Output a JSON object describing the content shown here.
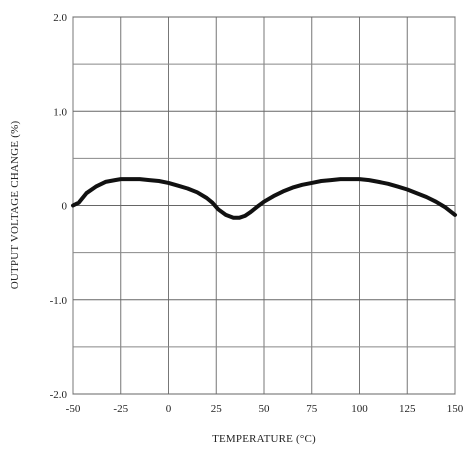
{
  "chart_data": {
    "type": "line",
    "title": "",
    "xlabel": "TEMPERATURE (°C)",
    "ylabel": "OUTPUT VOLTAGE CHANGE (%)",
    "xlim": [
      -50,
      150
    ],
    "ylim": [
      -2.0,
      2.0
    ],
    "grid": true,
    "x_ticks": [
      -50,
      -25,
      0,
      25,
      50,
      75,
      100,
      125,
      150
    ],
    "x_tick_labels": [
      "-50",
      "-25",
      "0",
      "25",
      "50",
      "75",
      "100",
      "125",
      "150"
    ],
    "y_ticks": [
      -2.0,
      -1.0,
      0,
      1.0,
      2.0
    ],
    "y_tick_labels": [
      "-2.0",
      "-1.0",
      "0",
      "1.0",
      "2.0"
    ],
    "y_minor_grid": [
      -1.5,
      -0.5,
      0.5,
      1.5
    ],
    "line_color": "#111111",
    "series": [
      {
        "x": [
          -50,
          -47,
          -43,
          -38,
          -33,
          -28,
          -25,
          -20,
          -15,
          -10,
          -5,
          0,
          5,
          10,
          15,
          20,
          23,
          26,
          30,
          34,
          37,
          40,
          43,
          46,
          50,
          55,
          60,
          65,
          70,
          75,
          80,
          85,
          90,
          95,
          100,
          105,
          110,
          115,
          120,
          125,
          130,
          135,
          140,
          145,
          150
        ],
        "y": [
          0.0,
          0.03,
          0.13,
          0.2,
          0.25,
          0.27,
          0.28,
          0.28,
          0.28,
          0.27,
          0.26,
          0.24,
          0.21,
          0.18,
          0.14,
          0.08,
          0.03,
          -0.04,
          -0.1,
          -0.13,
          -0.13,
          -0.11,
          -0.07,
          -0.02,
          0.04,
          0.1,
          0.15,
          0.19,
          0.22,
          0.24,
          0.26,
          0.27,
          0.28,
          0.28,
          0.28,
          0.27,
          0.25,
          0.23,
          0.2,
          0.17,
          0.13,
          0.09,
          0.04,
          -0.02,
          -0.1
        ]
      }
    ]
  }
}
